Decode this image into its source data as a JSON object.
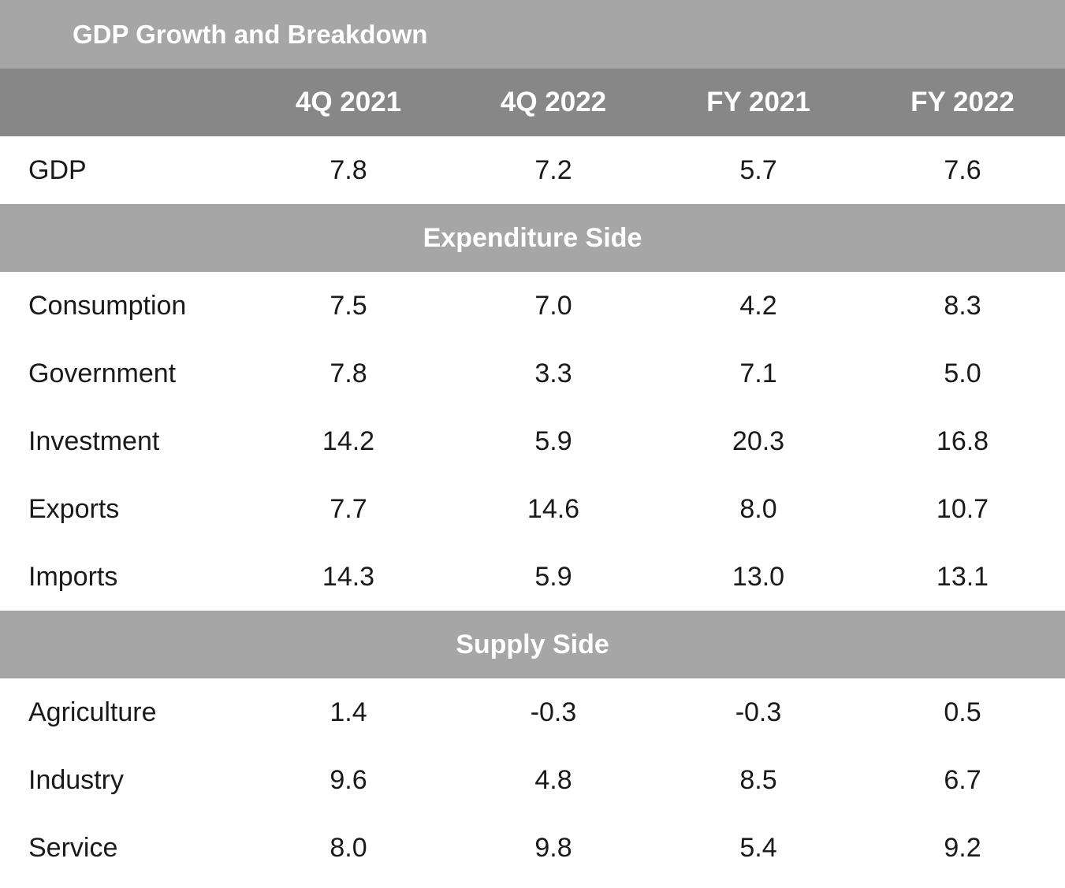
{
  "chart_data": {
    "type": "table",
    "title": "GDP Growth and Breakdown",
    "columns": [
      "4Q 2021",
      "4Q 2022",
      "FY 2021",
      "FY 2022"
    ],
    "rows": [
      {
        "label": "GDP",
        "values": [
          "7.8",
          "7.2",
          "5.7",
          "7.6"
        ]
      }
    ],
    "sections": [
      {
        "title": "Expenditure Side",
        "rows": [
          {
            "label": "Consumption",
            "values": [
              "7.5",
              "7.0",
              "4.2",
              "8.3"
            ]
          },
          {
            "label": "Government",
            "values": [
              "7.8",
              "3.3",
              "7.1",
              "5.0"
            ]
          },
          {
            "label": "Investment",
            "values": [
              "14.2",
              "5.9",
              "20.3",
              "16.8"
            ]
          },
          {
            "label": "Exports",
            "values": [
              "7.7",
              "14.6",
              "8.0",
              "10.7"
            ]
          },
          {
            "label": "Imports",
            "values": [
              "14.3",
              "5.9",
              "13.0",
              "13.1"
            ]
          }
        ]
      },
      {
        "title": "Supply Side",
        "rows": [
          {
            "label": "Agriculture",
            "values": [
              "1.4",
              "-0.3",
              "-0.3",
              "0.5"
            ]
          },
          {
            "label": "Industry",
            "values": [
              "9.6",
              "4.8",
              "8.5",
              "6.7"
            ]
          },
          {
            "label": "Service",
            "values": [
              "8.0",
              "9.8",
              "5.4",
              "9.2"
            ]
          }
        ]
      }
    ]
  },
  "colors": {
    "title_bg": "#a6a6a6",
    "header_bg": "#878787",
    "section_bg": "#a6a6a6",
    "header_text": "#ffffff",
    "body_text": "#1a1a1a"
  }
}
